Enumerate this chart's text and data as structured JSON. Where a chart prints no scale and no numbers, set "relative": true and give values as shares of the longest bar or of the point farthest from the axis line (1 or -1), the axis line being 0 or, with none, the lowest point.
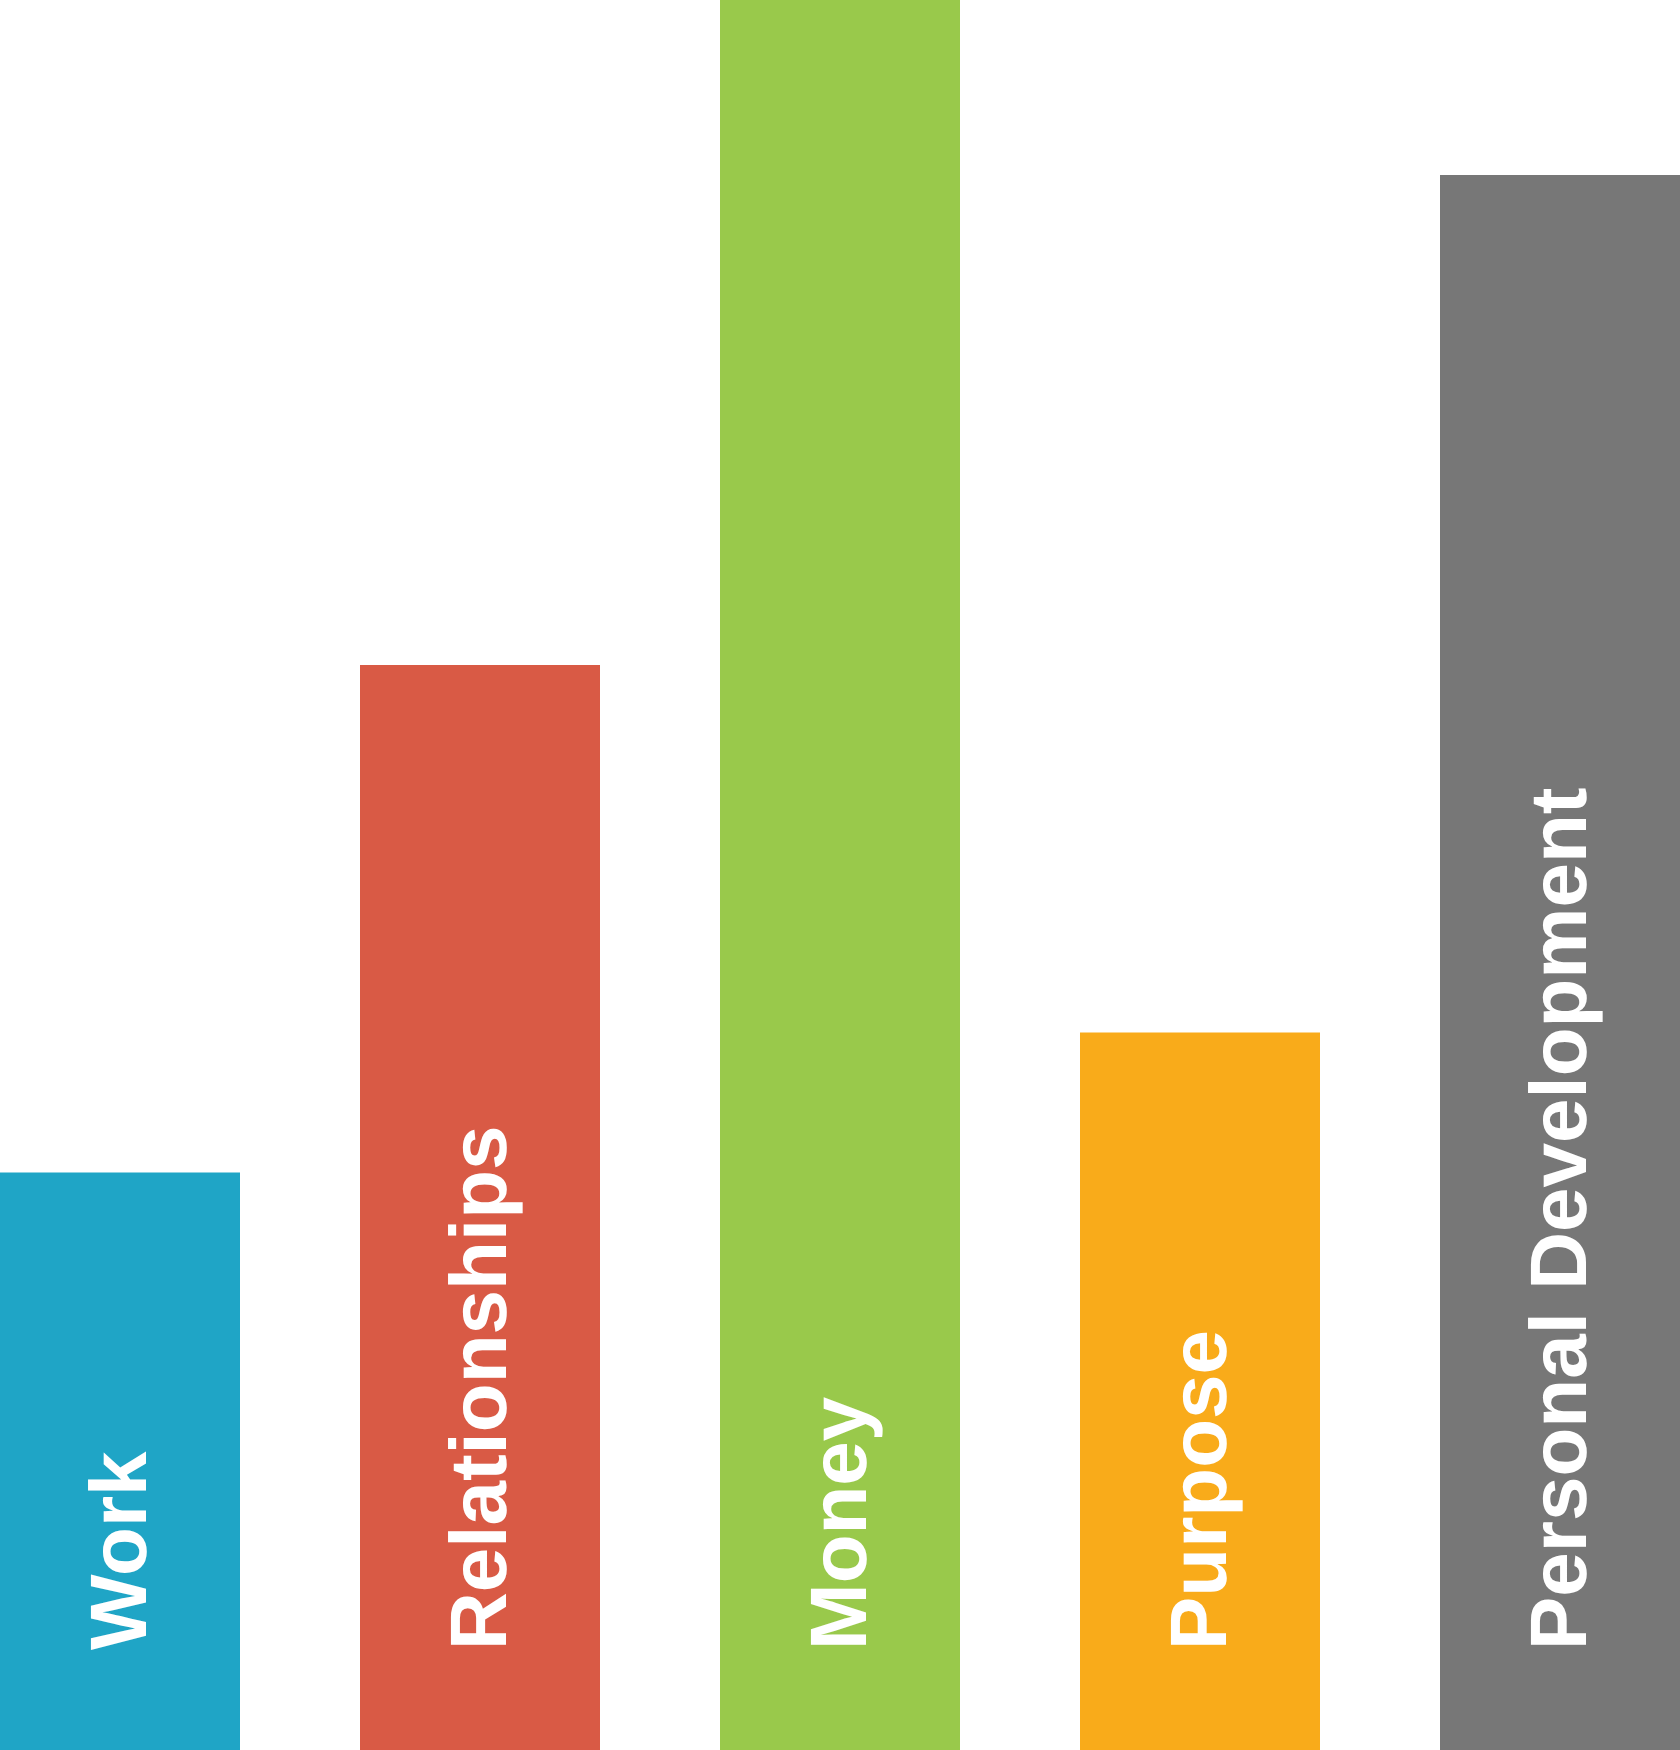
{
  "chart_data": {
    "type": "bar",
    "relative": true,
    "categories": [
      "Work",
      "Relationships",
      "Money",
      "Purpose",
      "Personal Development"
    ],
    "values": [
      0.33,
      0.62,
      1,
      0.41,
      0.9
    ],
    "colors": [
      "#1fa5c6",
      "#d95a45",
      "#99c94b",
      "#f9ab1a",
      "#777777"
    ]
  }
}
